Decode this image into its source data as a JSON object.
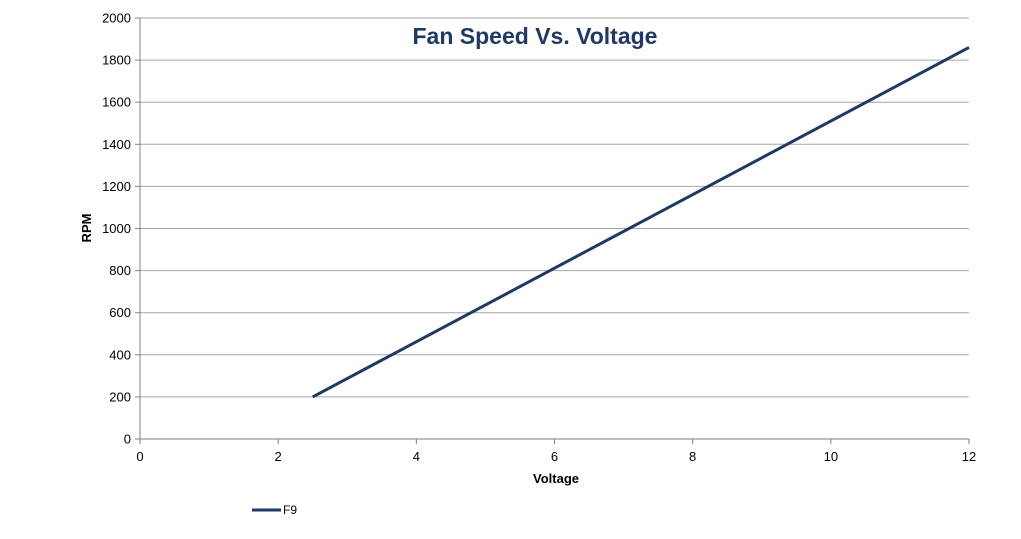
{
  "chart_data": {
    "type": "line",
    "title": "Fan Speed Vs. Voltage",
    "xlabel": "Voltage",
    "ylabel": "RPM",
    "xlim": [
      0,
      12
    ],
    "ylim": [
      0,
      2000
    ],
    "x_ticks": [
      0,
      2,
      4,
      6,
      8,
      10,
      12
    ],
    "y_ticks": [
      0,
      200,
      400,
      600,
      800,
      1000,
      1200,
      1400,
      1600,
      1800,
      2000
    ],
    "grid": "horizontal",
    "legend_position": "bottom-left",
    "series": [
      {
        "name": "F9",
        "color": "#1f3864",
        "points": [
          {
            "x": 2.5,
            "y": 200
          },
          {
            "x": 12,
            "y": 1860
          }
        ]
      }
    ]
  },
  "colors": {
    "series_line": "#1f3864",
    "title": "#1f3864",
    "gridline": "#a6a6a6",
    "axis": "#808080"
  }
}
